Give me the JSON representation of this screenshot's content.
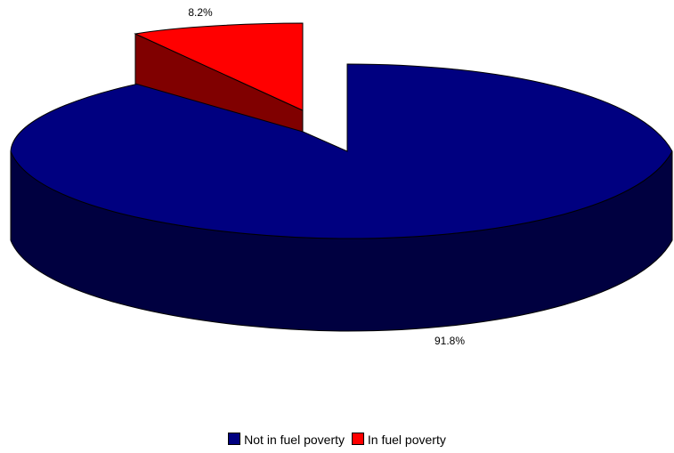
{
  "chart_data": {
    "type": "pie",
    "title": "",
    "categories": [
      "Not in fuel poverty",
      "In fuel poverty"
    ],
    "values": [
      91.8,
      8.2
    ],
    "data_labels": [
      "91.8%",
      "8.2%"
    ],
    "colors": [
      "#000080",
      "#FF0000"
    ],
    "style": "3d-exploded",
    "legend_position": "bottom"
  }
}
